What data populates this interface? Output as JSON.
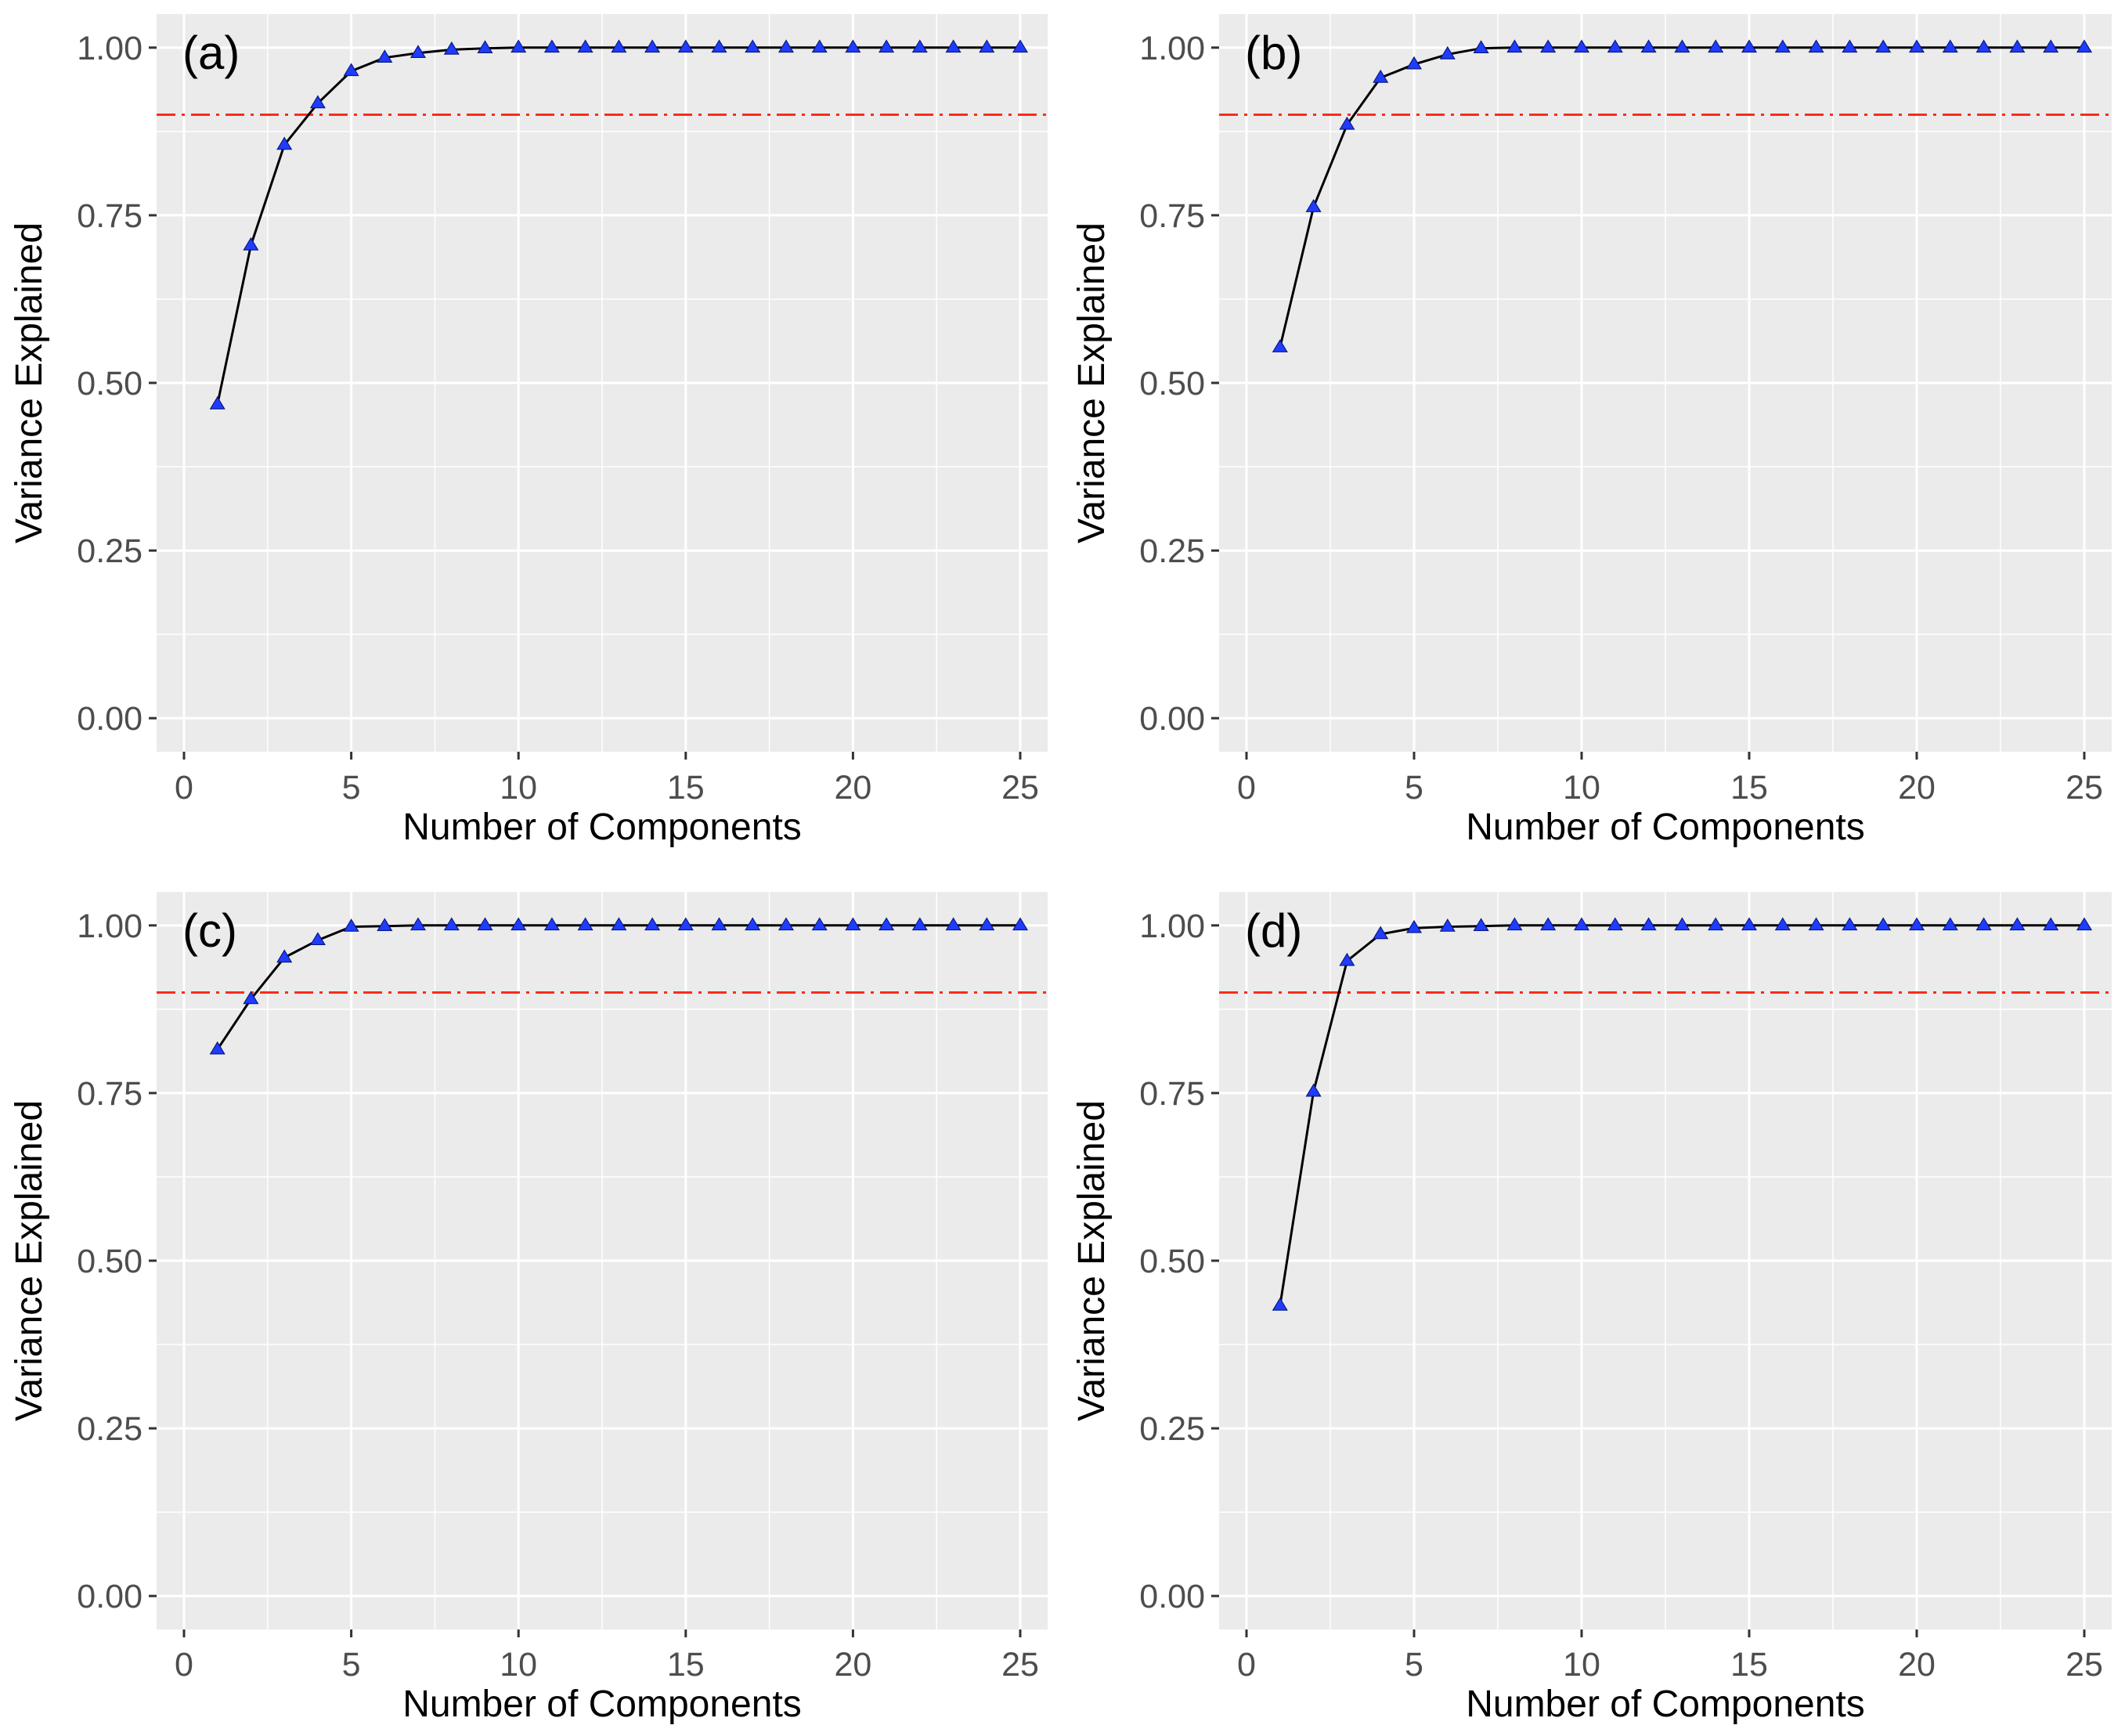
{
  "chart_data": [
    {
      "type": "line",
      "panel_label": "(a)",
      "xlabel": "Number of Components",
      "ylabel": "Variance Explained",
      "xlim": [
        0,
        25
      ],
      "ylim": [
        0,
        1
      ],
      "xticks": [
        "0",
        "5",
        "10",
        "15",
        "20",
        "25"
      ],
      "yticks": [
        "0.00",
        "0.25",
        "0.50",
        "0.75",
        "1.00"
      ],
      "threshold": 0.9,
      "x": [
        1,
        2,
        3,
        4,
        5,
        6,
        7,
        8,
        9,
        10,
        11,
        12,
        13,
        14,
        15,
        16,
        17,
        18,
        19,
        20,
        21,
        22,
        23,
        24,
        25
      ],
      "values": [
        0.468,
        0.705,
        0.855,
        0.917,
        0.965,
        0.985,
        0.992,
        0.997,
        0.999,
        1,
        1,
        1,
        1,
        1,
        1,
        1,
        1,
        1,
        1,
        1,
        1,
        1,
        1,
        1,
        1
      ]
    },
    {
      "type": "line",
      "panel_label": "(b)",
      "xlabel": "Number of Components",
      "ylabel": "Variance Explained",
      "xlim": [
        0,
        25
      ],
      "ylim": [
        0,
        1
      ],
      "xticks": [
        "0",
        "5",
        "10",
        "15",
        "20",
        "25"
      ],
      "yticks": [
        "0.00",
        "0.25",
        "0.50",
        "0.75",
        "1.00"
      ],
      "threshold": 0.9,
      "x": [
        1,
        2,
        3,
        4,
        5,
        6,
        7,
        8,
        9,
        10,
        11,
        12,
        13,
        14,
        15,
        16,
        17,
        18,
        19,
        20,
        21,
        22,
        23,
        24,
        25
      ],
      "values": [
        0.553,
        0.762,
        0.885,
        0.955,
        0.975,
        0.99,
        0.999,
        1,
        1,
        1,
        1,
        1,
        1,
        1,
        1,
        1,
        1,
        1,
        1,
        1,
        1,
        1,
        1,
        1,
        1
      ]
    },
    {
      "type": "line",
      "panel_label": "(c)",
      "xlabel": "Number of Components",
      "ylabel": "Variance Explained",
      "xlim": [
        0,
        25
      ],
      "ylim": [
        0,
        1
      ],
      "xticks": [
        "0",
        "5",
        "10",
        "15",
        "20",
        "25"
      ],
      "yticks": [
        "0.00",
        "0.25",
        "0.50",
        "0.75",
        "1.00"
      ],
      "threshold": 0.9,
      "x": [
        1,
        2,
        3,
        4,
        5,
        6,
        7,
        8,
        9,
        10,
        11,
        12,
        13,
        14,
        15,
        16,
        17,
        18,
        19,
        20,
        21,
        22,
        23,
        24,
        25
      ],
      "values": [
        0.815,
        0.89,
        0.952,
        0.978,
        0.998,
        0.999,
        1,
        1,
        1,
        1,
        1,
        1,
        1,
        1,
        1,
        1,
        1,
        1,
        1,
        1,
        1,
        1,
        1,
        1,
        1
      ]
    },
    {
      "type": "line",
      "panel_label": "(d)",
      "xlabel": "Number of Components",
      "ylabel": "Variance Explained",
      "xlim": [
        0,
        25
      ],
      "ylim": [
        0,
        1
      ],
      "xticks": [
        "0",
        "5",
        "10",
        "15",
        "20",
        "25"
      ],
      "yticks": [
        "0.00",
        "0.25",
        "0.50",
        "0.75",
        "1.00"
      ],
      "threshold": 0.9,
      "x": [
        1,
        2,
        3,
        4,
        5,
        6,
        7,
        8,
        9,
        10,
        11,
        12,
        13,
        14,
        15,
        16,
        17,
        18,
        19,
        20,
        21,
        22,
        23,
        24,
        25
      ],
      "values": [
        0.433,
        0.752,
        0.947,
        0.987,
        0.996,
        0.998,
        0.999,
        1,
        1,
        1,
        1,
        1,
        1,
        1,
        1,
        1,
        1,
        1,
        1,
        1,
        1,
        1,
        1,
        1,
        1
      ]
    }
  ],
  "colors": {
    "panel_bg": "#ebebeb",
    "grid": "#ffffff",
    "line": "#000000",
    "marker": "#1f3cff",
    "threshold": "#ff2a1a"
  }
}
